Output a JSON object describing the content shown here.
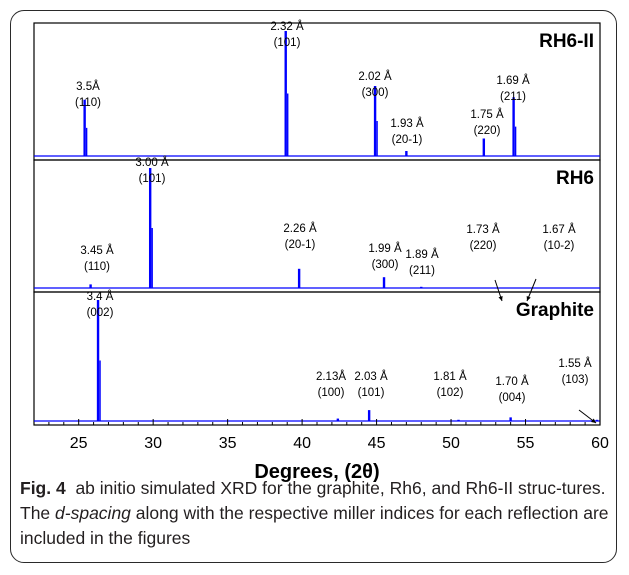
{
  "caption": {
    "label": "Fig. 4",
    "text_1": "ab initio simulated XRD for the graphite, Rh6, and Rh6-II struc-tures. The ",
    "text_italic": "d-spacing",
    "text_2": " along with the respective miller indices for each reflection are included in the figures"
  },
  "chart_data": {
    "type": "stacked-line",
    "xlabel": "Degrees, (2θ)",
    "xlim": [
      22,
      60
    ],
    "xticks": [
      "25",
      "30",
      "35",
      "40",
      "45",
      "50",
      "55",
      "60"
    ],
    "line_color": "#0000ff",
    "panels": [
      {
        "name": "RH6-II",
        "peaks": [
          {
            "x": 25.4,
            "h": 0.45,
            "d": "3.5Å",
            "hkl": "(110)"
          },
          {
            "x": 38.9,
            "h": 1.0,
            "d": "2.32 Å",
            "hkl": "(101)"
          },
          {
            "x": 44.9,
            "h": 0.56,
            "d": "2.02 Å",
            "hkl": "(300)"
          },
          {
            "x": 47.0,
            "h": 0.04,
            "d": "1.93 Å",
            "hkl": "(20-1)"
          },
          {
            "x": 52.2,
            "h": 0.14,
            "d": "1.75 Å",
            "hkl": "(220)"
          },
          {
            "x": 54.2,
            "h": 0.47,
            "d": "1.69 Å",
            "hkl": "(211)"
          }
        ]
      },
      {
        "name": "RH6",
        "peaks": [
          {
            "x": 25.8,
            "h": 0.03,
            "d": "3.45 Å",
            "hkl": "(110)"
          },
          {
            "x": 29.8,
            "h": 1.0,
            "d": "3.00 Å",
            "hkl": "(101)"
          },
          {
            "x": 39.8,
            "h": 0.16,
            "d": "2.26 Å",
            "hkl": "(20-1)"
          },
          {
            "x": 45.5,
            "h": 0.09,
            "d": "1.99 Å",
            "hkl": "(300)"
          },
          {
            "x": 48.0,
            "h": 0.01,
            "d": "1.89 Å",
            "hkl": "(211)"
          },
          {
            "x": 53.0,
            "h": 0.0,
            "d": "1.73 Å",
            "hkl": "(220)"
          },
          {
            "x": 54.9,
            "h": 0.0,
            "d": "1.67 Å",
            "hkl": "(10-2)"
          }
        ]
      },
      {
        "name": "Graphite",
        "peaks": [
          {
            "x": 26.3,
            "h": 1.0,
            "d": "3.4 Å",
            "hkl": "(002)"
          },
          {
            "x": 42.4,
            "h": 0.02,
            "d": "2.13Å",
            "hkl": "(100)"
          },
          {
            "x": 44.5,
            "h": 0.09,
            "d": "2.03 Å",
            "hkl": "(101)"
          },
          {
            "x": 50.5,
            "h": 0.01,
            "d": "1.81 Å",
            "hkl": "(102)"
          },
          {
            "x": 54.0,
            "h": 0.03,
            "d": "1.70 Å",
            "hkl": "(004)"
          },
          {
            "x": 59.8,
            "h": 0.01,
            "d": "1.55 Å",
            "hkl": "(103)"
          }
        ]
      }
    ]
  }
}
